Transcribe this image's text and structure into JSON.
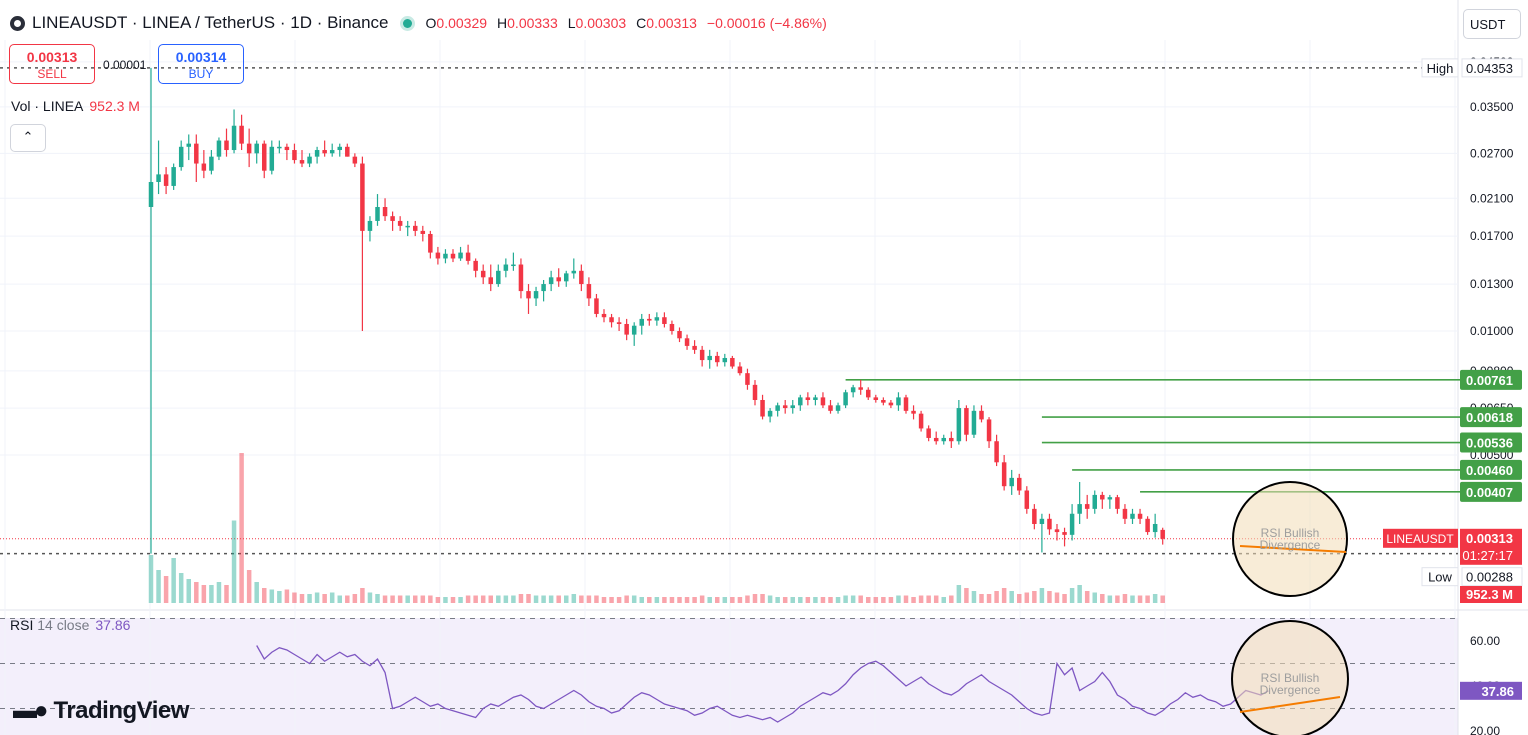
{
  "header": {
    "symbol_line": "LINEAUSDT · LINEA / TetherUS · 1D · Binance",
    "open_label": "O",
    "open": "0.00329",
    "high_label": "H",
    "high": "0.00333",
    "low_label": "L",
    "low": "0.00303",
    "close_label": "C",
    "close": "0.00313",
    "change": "−0.00016 (−4.86%)"
  },
  "trade": {
    "sell_price": "0.00313",
    "sell_label": "SELL",
    "buy_price": "0.00314",
    "buy_label": "BUY",
    "spread": "0.00001"
  },
  "volume_legend": {
    "label": "Vol · LINEA",
    "value": "952.3 M"
  },
  "currency_button": "USDT",
  "collapse_icon": "chevron-up-icon",
  "rsi_legend": {
    "label": "RSI",
    "params": "14 close",
    "value": "37.86"
  },
  "watermark": "TradingView",
  "colors": {
    "up": "#22ab94",
    "down": "#f23645",
    "level": "#4caf50",
    "rsi": "#7e57c2",
    "divergence": "#f57c00",
    "circle_fill": "#f3ddb6"
  },
  "chart_data": {
    "type": "candlestick",
    "title": "LINEAUSDT · LINEA / TetherUS · 1D · Binance",
    "y_scale": "log",
    "price_ticks": [
      "0.04500",
      "0.03500",
      "0.02700",
      "0.02100",
      "0.01700",
      "0.01300",
      "0.01000",
      "0.00800",
      "0.00650",
      "0.00500"
    ],
    "high_marker": {
      "label": "High",
      "value": "0.04353"
    },
    "low_marker": {
      "label": "Low",
      "value": "0.00288"
    },
    "last_price": {
      "symbol": "LINEAUSDT",
      "value": "0.00313",
      "countdown": "01:27:17"
    },
    "volume_tag": "952.3 M",
    "levels": [
      {
        "value": "0.00761",
        "num": 0.00761
      },
      {
        "value": "0.00618",
        "num": 0.00618
      },
      {
        "value": "0.00536",
        "num": 0.00536
      },
      {
        "value": "0.00460",
        "num": 0.0046
      },
      {
        "value": "0.00407",
        "num": 0.00407
      }
    ],
    "candles": [
      [
        0.02,
        0.04353,
        0.00288,
        0.023
      ],
      [
        0.023,
        0.029,
        0.0215,
        0.024
      ],
      [
        0.024,
        0.025,
        0.0215,
        0.0225
      ],
      [
        0.0225,
        0.0255,
        0.022,
        0.025
      ],
      [
        0.025,
        0.029,
        0.0245,
        0.028
      ],
      [
        0.028,
        0.03,
        0.026,
        0.0285
      ],
      [
        0.0285,
        0.03,
        0.023,
        0.0255
      ],
      [
        0.0255,
        0.0275,
        0.0235,
        0.0245
      ],
      [
        0.0245,
        0.0275,
        0.024,
        0.0265
      ],
      [
        0.0265,
        0.0295,
        0.026,
        0.029
      ],
      [
        0.029,
        0.031,
        0.0265,
        0.0275
      ],
      [
        0.0275,
        0.0345,
        0.027,
        0.0315
      ],
      [
        0.0315,
        0.0335,
        0.0275,
        0.0285
      ],
      [
        0.0285,
        0.031,
        0.025,
        0.027
      ],
      [
        0.027,
        0.029,
        0.0255,
        0.0285
      ],
      [
        0.0285,
        0.029,
        0.0235,
        0.0245
      ],
      [
        0.0245,
        0.029,
        0.024,
        0.028
      ],
      [
        0.028,
        0.029,
        0.027,
        0.028
      ],
      [
        0.028,
        0.0285,
        0.026,
        0.0275
      ],
      [
        0.0275,
        0.0285,
        0.0255,
        0.026
      ],
      [
        0.026,
        0.0275,
        0.025,
        0.0255
      ],
      [
        0.0255,
        0.027,
        0.025,
        0.0265
      ],
      [
        0.0265,
        0.028,
        0.0255,
        0.0275
      ],
      [
        0.0275,
        0.029,
        0.0265,
        0.027
      ],
      [
        0.027,
        0.0285,
        0.0265,
        0.0275
      ],
      [
        0.0275,
        0.0285,
        0.0265,
        0.028
      ],
      [
        0.028,
        0.0285,
        0.0265,
        0.0265
      ],
      [
        0.0265,
        0.027,
        0.025,
        0.0255
      ],
      [
        0.0255,
        0.0265,
        0.01,
        0.0175
      ],
      [
        0.0175,
        0.019,
        0.0165,
        0.0185
      ],
      [
        0.0185,
        0.0215,
        0.018,
        0.02
      ],
      [
        0.02,
        0.021,
        0.0185,
        0.019
      ],
      [
        0.019,
        0.0195,
        0.0175,
        0.0185
      ],
      [
        0.0185,
        0.019,
        0.0175,
        0.018
      ],
      [
        0.018,
        0.0185,
        0.017,
        0.018
      ],
      [
        0.018,
        0.0185,
        0.017,
        0.0175
      ],
      [
        0.0175,
        0.018,
        0.0165,
        0.0172
      ],
      [
        0.0172,
        0.0175,
        0.015,
        0.0155
      ],
      [
        0.0155,
        0.016,
        0.0145,
        0.015
      ],
      [
        0.015,
        0.0158,
        0.0146,
        0.0154
      ],
      [
        0.0154,
        0.0158,
        0.0147,
        0.015
      ],
      [
        0.015,
        0.016,
        0.0148,
        0.0155
      ],
      [
        0.0155,
        0.0162,
        0.0145,
        0.0148
      ],
      [
        0.0148,
        0.015,
        0.0135,
        0.014
      ],
      [
        0.014,
        0.0145,
        0.013,
        0.0135
      ],
      [
        0.0135,
        0.0145,
        0.0125,
        0.013
      ],
      [
        0.013,
        0.0145,
        0.0128,
        0.014
      ],
      [
        0.014,
        0.015,
        0.0135,
        0.0145
      ],
      [
        0.0145,
        0.0155,
        0.014,
        0.0145
      ],
      [
        0.0145,
        0.015,
        0.012,
        0.0125
      ],
      [
        0.0125,
        0.013,
        0.011,
        0.012
      ],
      [
        0.012,
        0.0128,
        0.0115,
        0.0125
      ],
      [
        0.0125,
        0.0133,
        0.0118,
        0.013
      ],
      [
        0.013,
        0.014,
        0.0125,
        0.0135
      ],
      [
        0.0135,
        0.0142,
        0.0128,
        0.0132
      ],
      [
        0.0132,
        0.014,
        0.0128,
        0.0138
      ],
      [
        0.0138,
        0.015,
        0.0134,
        0.014
      ],
      [
        0.014,
        0.0145,
        0.0125,
        0.013
      ],
      [
        0.013,
        0.0135,
        0.0115,
        0.012
      ],
      [
        0.012,
        0.0123,
        0.0108,
        0.011
      ],
      [
        0.011,
        0.0113,
        0.0105,
        0.0108
      ],
      [
        0.0108,
        0.011,
        0.0102,
        0.0105
      ],
      [
        0.0105,
        0.0108,
        0.01,
        0.0104
      ],
      [
        0.0104,
        0.0107,
        0.0095,
        0.0098
      ],
      [
        0.0098,
        0.0105,
        0.0092,
        0.0103
      ],
      [
        0.0103,
        0.011,
        0.0098,
        0.0107
      ],
      [
        0.0107,
        0.011,
        0.0103,
        0.0106
      ],
      [
        0.0106,
        0.0111,
        0.0103,
        0.0108
      ],
      [
        0.0108,
        0.0111,
        0.0102,
        0.0104
      ],
      [
        0.0104,
        0.0106,
        0.0098,
        0.01
      ],
      [
        0.01,
        0.0102,
        0.0094,
        0.0096
      ],
      [
        0.0096,
        0.0098,
        0.009,
        0.0092
      ],
      [
        0.0092,
        0.0095,
        0.0088,
        0.009
      ],
      [
        0.009,
        0.0092,
        0.0082,
        0.0085
      ],
      [
        0.0085,
        0.009,
        0.0081,
        0.0087
      ],
      [
        0.0087,
        0.0089,
        0.0082,
        0.0084
      ],
      [
        0.0084,
        0.0088,
        0.0082,
        0.0086
      ],
      [
        0.0086,
        0.0087,
        0.0081,
        0.0082
      ],
      [
        0.0082,
        0.0084,
        0.0078,
        0.0079
      ],
      [
        0.0079,
        0.0081,
        0.0072,
        0.0074
      ],
      [
        0.0074,
        0.0076,
        0.0066,
        0.0068
      ],
      [
        0.0068,
        0.007,
        0.0061,
        0.0062
      ],
      [
        0.0062,
        0.0065,
        0.006,
        0.0064
      ],
      [
        0.0064,
        0.0067,
        0.0062,
        0.0066
      ],
      [
        0.0066,
        0.0068,
        0.0063,
        0.0065
      ],
      [
        0.0065,
        0.0068,
        0.0063,
        0.0066
      ],
      [
        0.0066,
        0.007,
        0.0064,
        0.0069
      ],
      [
        0.0069,
        0.0071,
        0.0066,
        0.0068
      ],
      [
        0.0068,
        0.007,
        0.0066,
        0.0069
      ],
      [
        0.0069,
        0.0071,
        0.0065,
        0.0066
      ],
      [
        0.0066,
        0.0068,
        0.0063,
        0.0064
      ],
      [
        0.0064,
        0.0067,
        0.0063,
        0.0066
      ],
      [
        0.0066,
        0.0072,
        0.0065,
        0.0071
      ],
      [
        0.0071,
        0.0074,
        0.0069,
        0.0073
      ],
      [
        0.0073,
        0.00761,
        0.007,
        0.0072
      ],
      [
        0.0072,
        0.0073,
        0.0068,
        0.0069
      ],
      [
        0.0069,
        0.007,
        0.0067,
        0.0068
      ],
      [
        0.0068,
        0.0069,
        0.0066,
        0.0067
      ],
      [
        0.0067,
        0.0068,
        0.0065,
        0.0066
      ],
      [
        0.0066,
        0.0071,
        0.0064,
        0.0069
      ],
      [
        0.0069,
        0.007,
        0.0063,
        0.0064
      ],
      [
        0.0064,
        0.0066,
        0.0061,
        0.0063
      ],
      [
        0.0063,
        0.0064,
        0.0057,
        0.0058
      ],
      [
        0.0058,
        0.0059,
        0.0054,
        0.0055
      ],
      [
        0.0055,
        0.0057,
        0.0053,
        0.0054
      ],
      [
        0.0054,
        0.0056,
        0.0053,
        0.0055
      ],
      [
        0.0055,
        0.0057,
        0.0052,
        0.0054
      ],
      [
        0.0054,
        0.0068,
        0.0053,
        0.0065
      ],
      [
        0.0065,
        0.0066,
        0.0054,
        0.0056
      ],
      [
        0.0056,
        0.0066,
        0.0055,
        0.0064
      ],
      [
        0.0064,
        0.0066,
        0.006,
        0.0061
      ],
      [
        0.0061,
        0.00618,
        0.0052,
        0.0054
      ],
      [
        0.0054,
        0.0056,
        0.0047,
        0.0048
      ],
      [
        0.0048,
        0.005,
        0.0041,
        0.0042
      ],
      [
        0.0042,
        0.0046,
        0.004,
        0.0044
      ],
      [
        0.0044,
        0.0045,
        0.004,
        0.0041
      ],
      [
        0.0041,
        0.0042,
        0.0036,
        0.0037
      ],
      [
        0.0037,
        0.0038,
        0.0033,
        0.0034
      ],
      [
        0.0034,
        0.0036,
        0.0029,
        0.0035
      ],
      [
        0.0035,
        0.0036,
        0.0032,
        0.0033
      ],
      [
        0.0033,
        0.0034,
        0.0031,
        0.00325
      ],
      [
        0.00325,
        0.00333,
        0.003,
        0.0032
      ],
      [
        0.0032,
        0.0038,
        0.0031,
        0.0036
      ],
      [
        0.0036,
        0.0043,
        0.0034,
        0.0038
      ],
      [
        0.0038,
        0.004,
        0.0035,
        0.0037
      ],
      [
        0.0037,
        0.0041,
        0.0036,
        0.004
      ],
      [
        0.004,
        0.00407,
        0.0037,
        0.0039
      ],
      [
        0.0039,
        0.004,
        0.0037,
        0.00395
      ],
      [
        0.00395,
        0.004,
        0.0036,
        0.0037
      ],
      [
        0.0037,
        0.0038,
        0.0034,
        0.0035
      ],
      [
        0.0035,
        0.0037,
        0.0034,
        0.0036
      ],
      [
        0.0036,
        0.0037,
        0.0034,
        0.0035
      ],
      [
        0.0035,
        0.00355,
        0.0032,
        0.00325
      ],
      [
        0.00325,
        0.0036,
        0.00315,
        0.0034
      ],
      [
        0.00329,
        0.00333,
        0.00303,
        0.00313
      ]
    ],
    "volumes": [
      0.32,
      0.22,
      0.18,
      0.3,
      0.2,
      0.16,
      0.14,
      0.12,
      0.12,
      0.14,
      0.12,
      0.55,
      1.0,
      0.22,
      0.14,
      0.1,
      0.09,
      0.08,
      0.09,
      0.07,
      0.06,
      0.06,
      0.07,
      0.06,
      0.07,
      0.05,
      0.05,
      0.06,
      0.1,
      0.07,
      0.06,
      0.05,
      0.05,
      0.05,
      0.05,
      0.05,
      0.05,
      0.05,
      0.04,
      0.04,
      0.04,
      0.04,
      0.05,
      0.05,
      0.05,
      0.05,
      0.05,
      0.05,
      0.05,
      0.06,
      0.06,
      0.05,
      0.05,
      0.05,
      0.05,
      0.05,
      0.06,
      0.05,
      0.05,
      0.05,
      0.04,
      0.04,
      0.04,
      0.05,
      0.05,
      0.04,
      0.04,
      0.04,
      0.04,
      0.04,
      0.04,
      0.04,
      0.04,
      0.05,
      0.04,
      0.04,
      0.04,
      0.04,
      0.04,
      0.05,
      0.06,
      0.06,
      0.05,
      0.04,
      0.04,
      0.04,
      0.04,
      0.04,
      0.04,
      0.04,
      0.04,
      0.04,
      0.05,
      0.05,
      0.05,
      0.04,
      0.04,
      0.04,
      0.04,
      0.05,
      0.05,
      0.04,
      0.05,
      0.05,
      0.05,
      0.04,
      0.05,
      0.12,
      0.1,
      0.08,
      0.06,
      0.06,
      0.08,
      0.1,
      0.08,
      0.06,
      0.07,
      0.08,
      0.1,
      0.08,
      0.07,
      0.06,
      0.1,
      0.12,
      0.08,
      0.07,
      0.06,
      0.05,
      0.05,
      0.06,
      0.05,
      0.05,
      0.05,
      0.06,
      0.05
    ],
    "rsi": {
      "ticks": [
        "60.00",
        "40.00",
        "20.00"
      ],
      "value": "37.86",
      "values": [
        58,
        52,
        55,
        57,
        56,
        54,
        52,
        50,
        54,
        51,
        53,
        55,
        53,
        54,
        51,
        49,
        52,
        46,
        30,
        31,
        33,
        35,
        33,
        31,
        32,
        30,
        29,
        28,
        27,
        26,
        30,
        32,
        31,
        33,
        35,
        36,
        34,
        31,
        30,
        32,
        34,
        36,
        38,
        36,
        33,
        31,
        30,
        28,
        29,
        32,
        35,
        37,
        36,
        34,
        32,
        31,
        30,
        29,
        27,
        28,
        30,
        31,
        29,
        27,
        26,
        27,
        26,
        25,
        26,
        24,
        26,
        28,
        31,
        33,
        35,
        37,
        36,
        38,
        41,
        45,
        48,
        50,
        51,
        49,
        46,
        43,
        40,
        42,
        44,
        41,
        39,
        37,
        36,
        38,
        41,
        43,
        45,
        42,
        40,
        38,
        36,
        33,
        30,
        28,
        27,
        28,
        50,
        45,
        48,
        38,
        40,
        42,
        46,
        42,
        36,
        34,
        31,
        30,
        28,
        27,
        29,
        32,
        34,
        37,
        35,
        36,
        34,
        33,
        31,
        32,
        35,
        38,
        37,
        36,
        37.86
      ]
    },
    "annotation": {
      "line1": "RSI Bullish",
      "line2": "Divergence"
    }
  }
}
